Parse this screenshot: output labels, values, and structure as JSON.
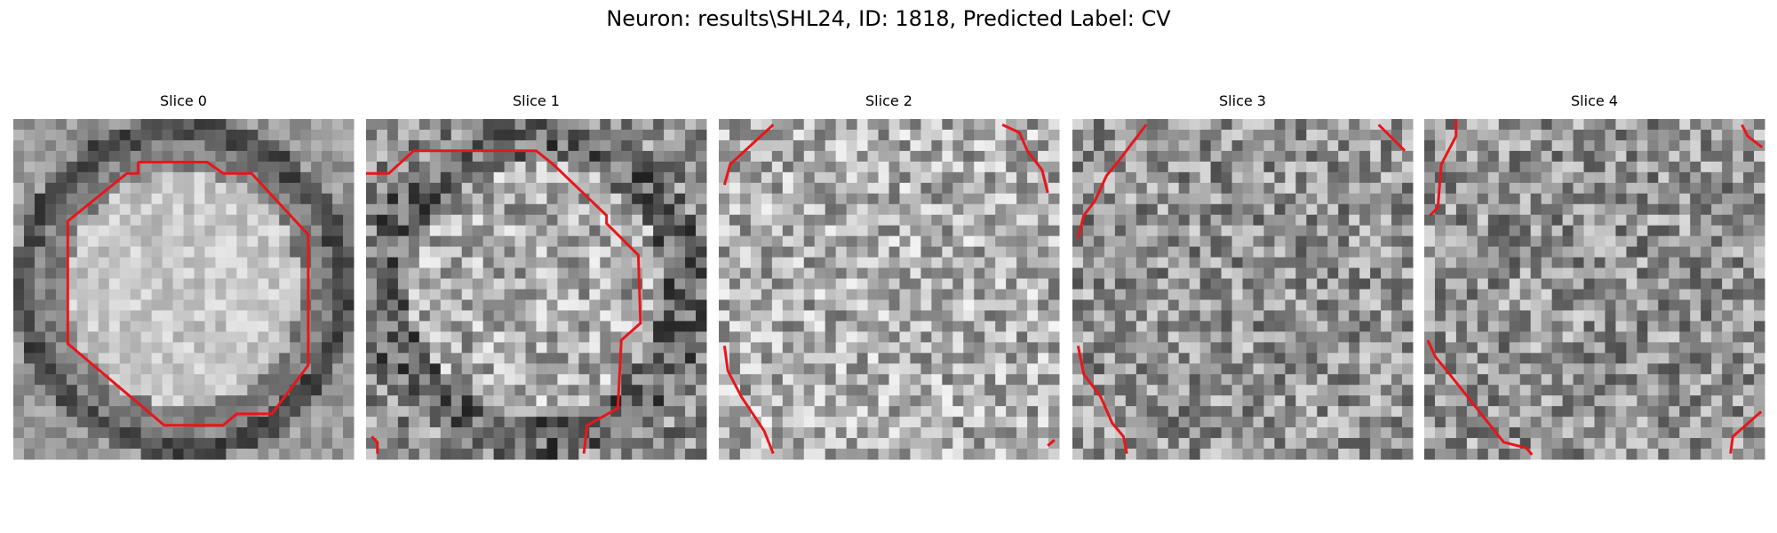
{
  "header": {
    "title": "Neuron: results\\SHL24, ID: 1818, Predicted Label: CV"
  },
  "panels": [
    {
      "title": "Slice 0"
    },
    {
      "title": "Slice 1"
    },
    {
      "title": "Slice 2"
    },
    {
      "title": "Slice 3"
    },
    {
      "title": "Slice 4"
    }
  ]
}
